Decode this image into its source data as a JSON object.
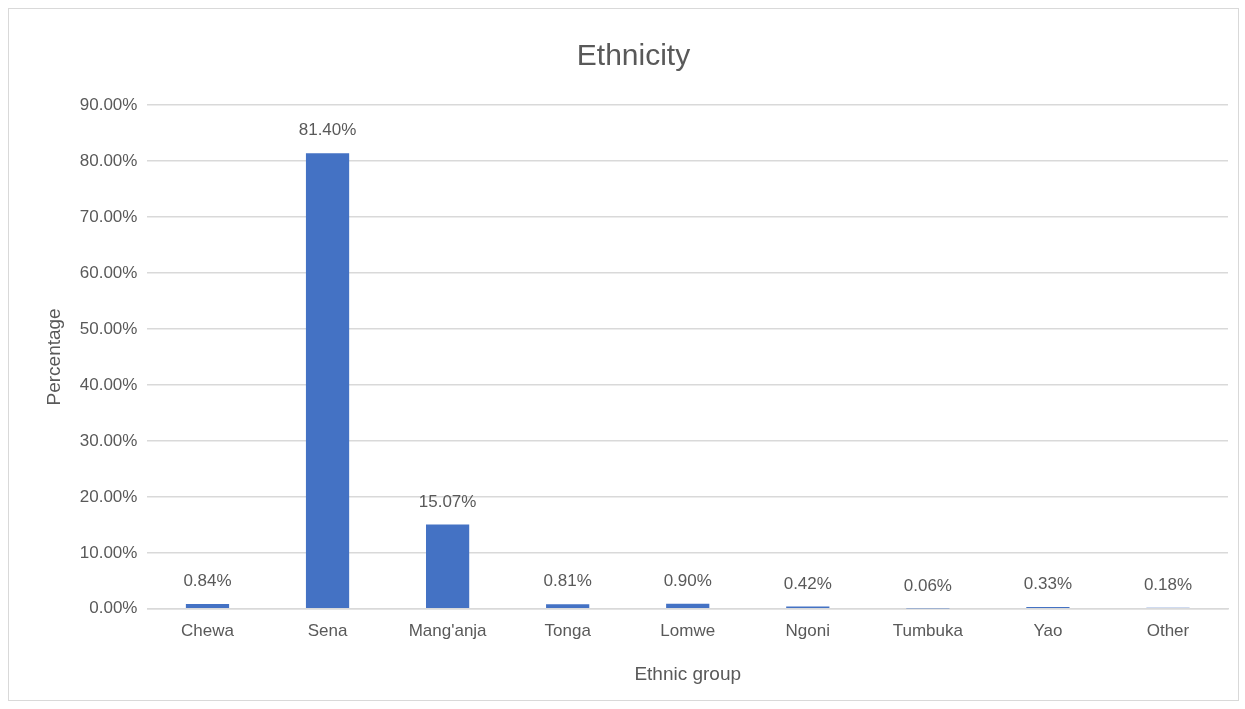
{
  "chart_data": {
    "type": "bar",
    "title": "Ethnicity",
    "xlabel": "Ethnic group",
    "ylabel": "Percentage",
    "categories": [
      "Chewa",
      "Sena",
      "Mang'anja",
      "Tonga",
      "Lomwe",
      "Ngoni",
      "Tumbuka",
      "Yao",
      "Other"
    ],
    "values": [
      0.84,
      81.4,
      15.07,
      0.81,
      0.9,
      0.42,
      0.06,
      0.33,
      0.18
    ],
    "value_labels": [
      "0.84%",
      "81.40%",
      "15.07%",
      "0.81%",
      "0.90%",
      "0.42%",
      "0.06%",
      "0.33%",
      "0.18%"
    ],
    "color": "#4472c4",
    "ylim": [
      0,
      90
    ],
    "yticks": [
      {
        "value": 0,
        "label": "0.00%"
      },
      {
        "value": 10,
        "label": "10.00%"
      },
      {
        "value": 20,
        "label": "20.00%"
      },
      {
        "value": 30,
        "label": "30.00%"
      },
      {
        "value": 40,
        "label": "40.00%"
      },
      {
        "value": 50,
        "label": "50.00%"
      },
      {
        "value": 60,
        "label": "60.00%"
      },
      {
        "value": 70,
        "label": "70.00%"
      },
      {
        "value": 80,
        "label": "80.00%"
      },
      {
        "value": 90,
        "label": "90.00%"
      }
    ],
    "grid": "y",
    "legend": false
  }
}
